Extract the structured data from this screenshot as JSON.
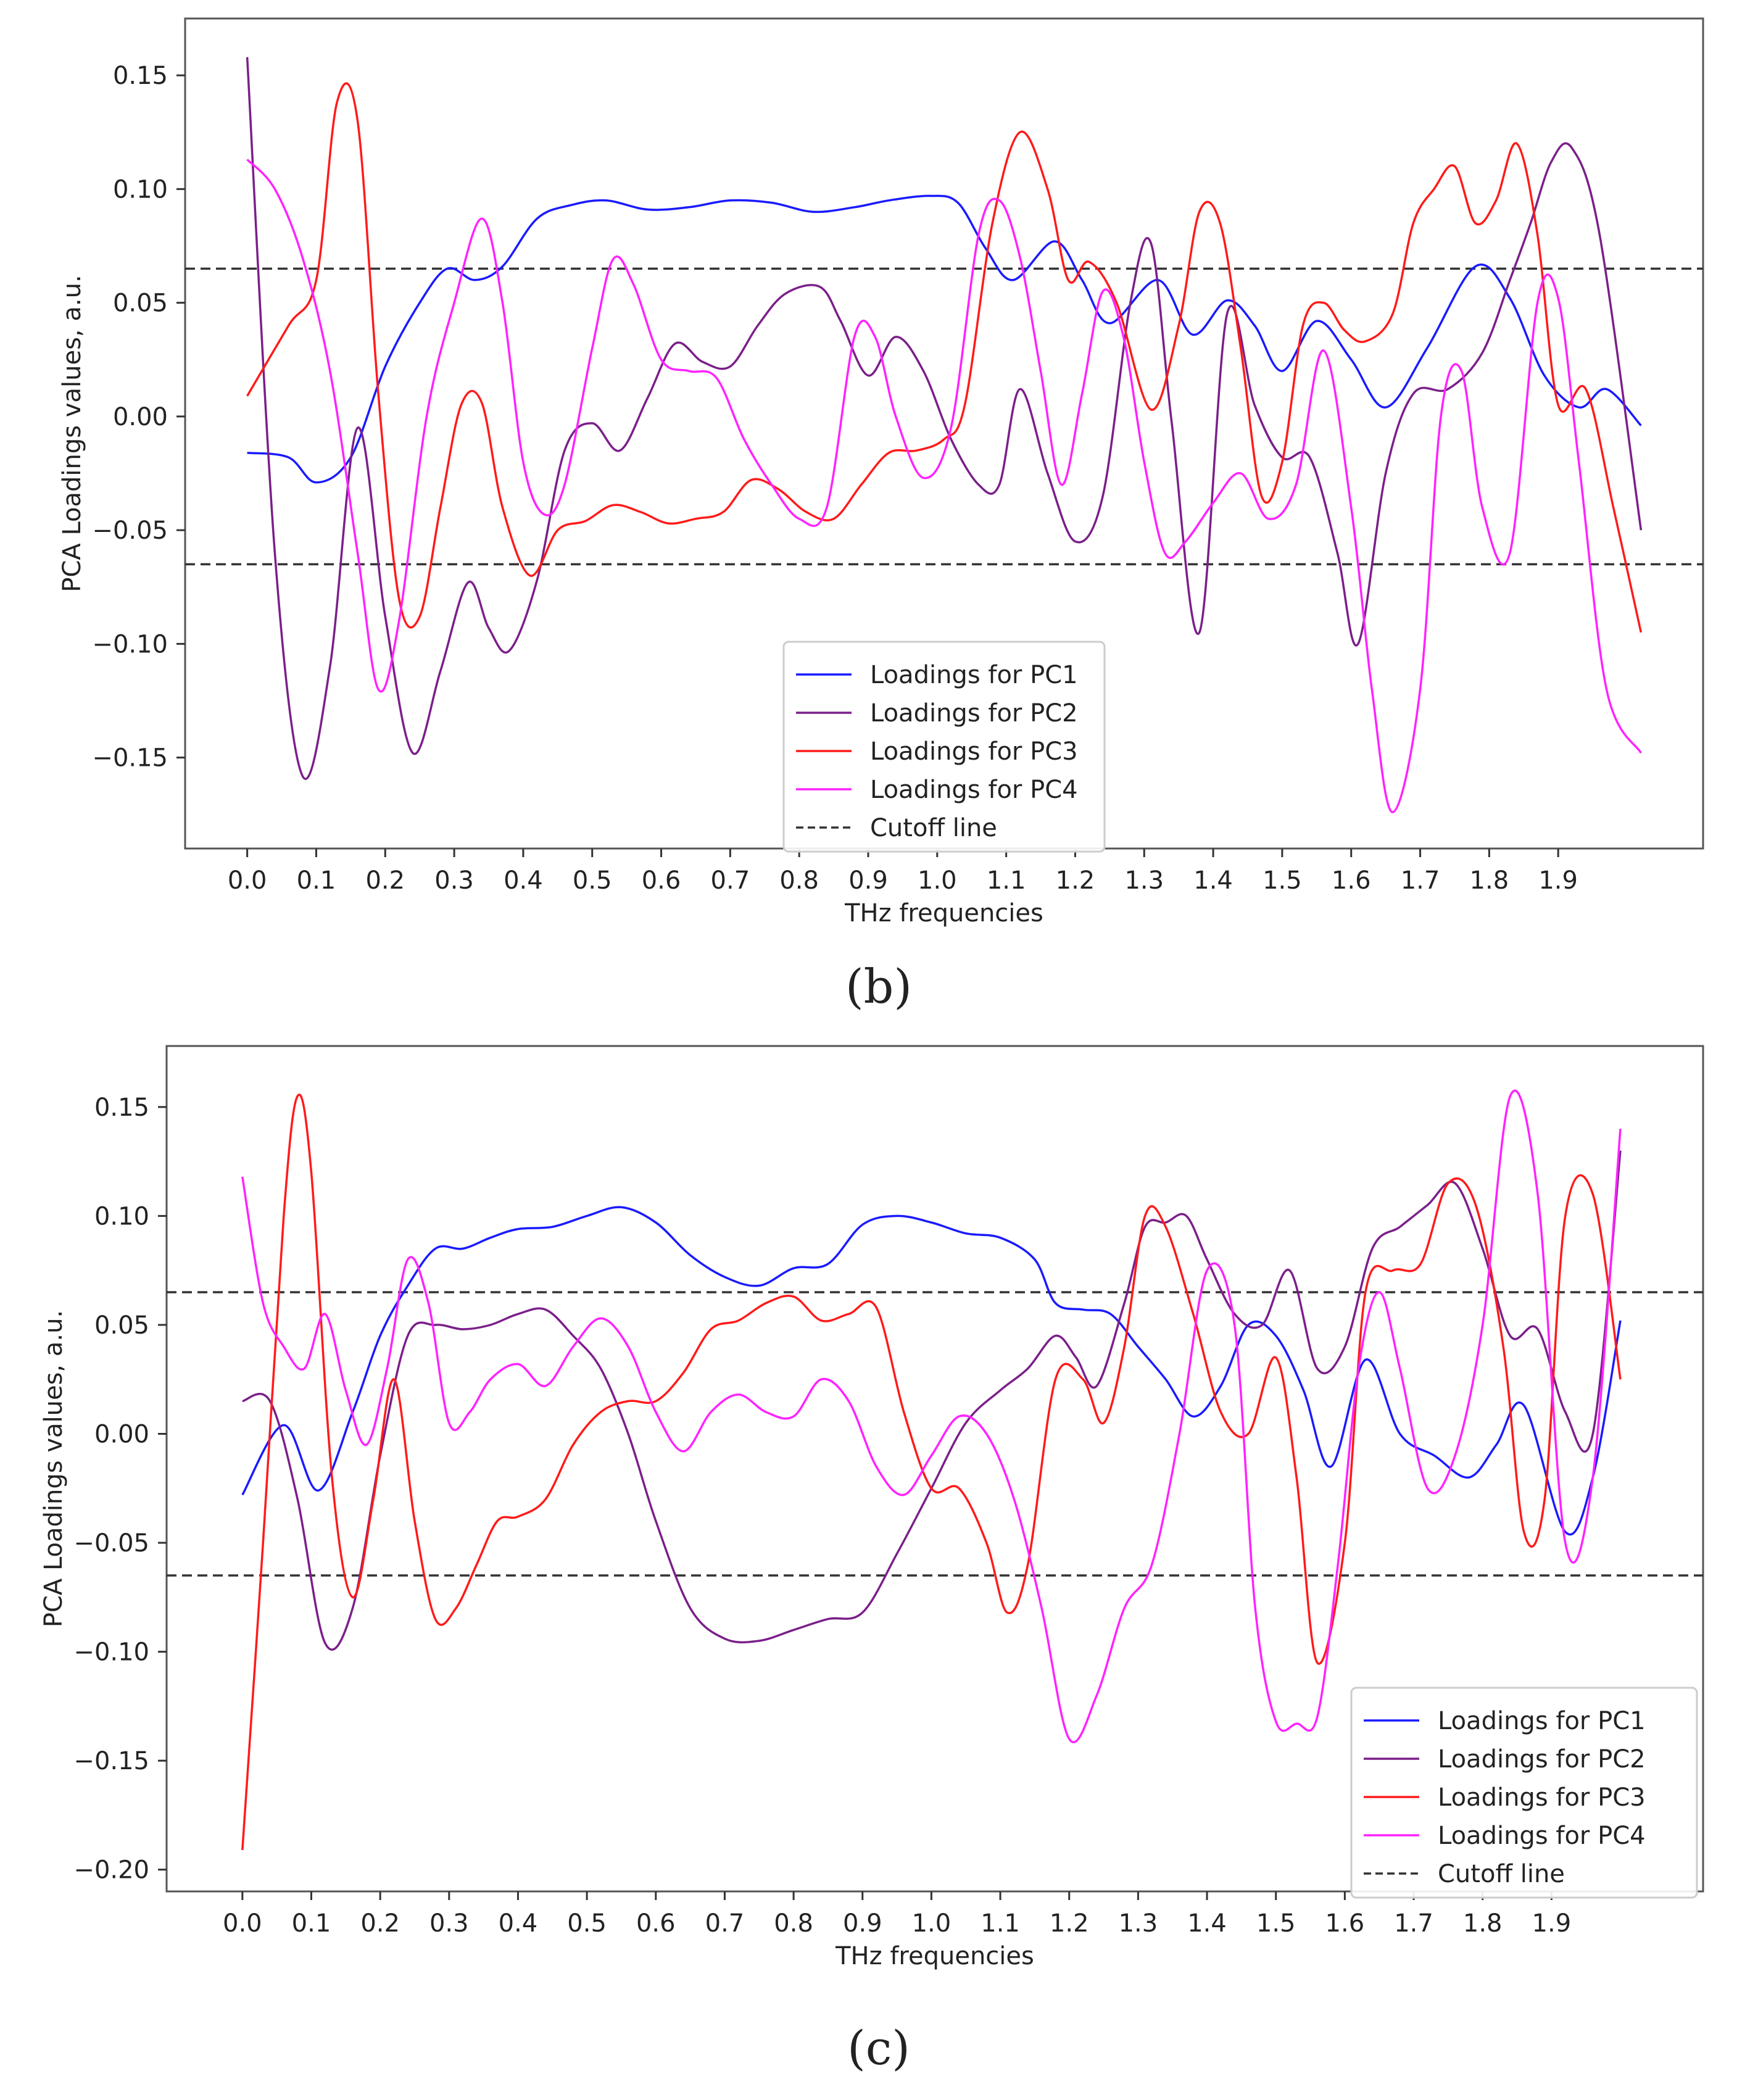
{
  "figure": {
    "panel_labels": [
      "(b)",
      "(c)"
    ]
  },
  "colors": {
    "pc1": "#1a1aff",
    "pc2": "#7b1f8a",
    "pc3": "#ff1a1a",
    "pc4": "#ff22ff",
    "cutoff": "#333333",
    "frame": "#555555"
  },
  "chart_data": [
    {
      "type": "line",
      "panel": "(b)",
      "title": "",
      "xlabel": "THz frequencies",
      "ylabel": "PCA Loadings values, a.u.",
      "xlim": [
        -0.09,
        2.11
      ],
      "ylim": [
        -0.19,
        0.175
      ],
      "x_ticks": [
        0.0,
        0.1,
        0.2,
        0.3,
        0.4,
        0.5,
        0.6,
        0.7,
        0.8,
        0.9,
        1.0,
        1.1,
        1.2,
        1.3,
        1.4,
        1.5,
        1.6,
        1.7,
        1.8,
        1.9
      ],
      "x_tick_labels": [
        "0.0",
        "0.1",
        "0.2",
        "0.3",
        "0.4",
        "0.5",
        "0.6",
        "0.7",
        "0.8",
        "0.9",
        "1.0",
        "1.1",
        "1.2",
        "1.3",
        "1.4",
        "1.5",
        "1.6",
        "1.7",
        "1.8",
        "1.9"
      ],
      "y_ticks": [
        -0.15,
        -0.1,
        -0.05,
        0.0,
        0.05,
        0.1,
        0.15
      ],
      "y_tick_labels": [
        "−0.15",
        "−0.10",
        "−0.05",
        "0.00",
        "0.05",
        "0.10",
        "0.15"
      ],
      "cutoff": [
        0.065,
        -0.065
      ],
      "legend_position": "lower-center",
      "legend": [
        "Loadings for PC1",
        "Loadings for PC2",
        "Loadings for PC3",
        "Loadings for PC4",
        "Cutoff line"
      ],
      "series": [
        {
          "name": "Loadings for PC1",
          "color_key": "pc1",
          "x": [
            0.0,
            0.06,
            0.1,
            0.15,
            0.2,
            0.25,
            0.29,
            0.33,
            0.37,
            0.42,
            0.47,
            0.52,
            0.58,
            0.64,
            0.7,
            0.76,
            0.82,
            0.88,
            0.93,
            0.99,
            1.03,
            1.07,
            1.11,
            1.17,
            1.21,
            1.25,
            1.32,
            1.37,
            1.42,
            1.46,
            1.5,
            1.55,
            1.6,
            1.65,
            1.71,
            1.78,
            1.83,
            1.88,
            1.93,
            1.97,
            2.02
          ],
          "y": [
            -0.016,
            -0.018,
            -0.029,
            -0.018,
            0.022,
            0.05,
            0.065,
            0.06,
            0.066,
            0.087,
            0.093,
            0.095,
            0.091,
            0.092,
            0.095,
            0.094,
            0.09,
            0.092,
            0.095,
            0.097,
            0.094,
            0.074,
            0.06,
            0.077,
            0.06,
            0.041,
            0.06,
            0.036,
            0.051,
            0.04,
            0.02,
            0.042,
            0.025,
            0.004,
            0.03,
            0.066,
            0.052,
            0.018,
            0.004,
            0.012,
            -0.004
          ]
        },
        {
          "name": "Loadings for PC2",
          "color_key": "pc2",
          "x": [
            0.0,
            0.04,
            0.08,
            0.12,
            0.16,
            0.2,
            0.24,
            0.28,
            0.32,
            0.35,
            0.38,
            0.42,
            0.46,
            0.5,
            0.54,
            0.58,
            0.62,
            0.66,
            0.7,
            0.74,
            0.78,
            0.83,
            0.86,
            0.9,
            0.94,
            0.98,
            1.02,
            1.06,
            1.09,
            1.12,
            1.16,
            1.2,
            1.24,
            1.28,
            1.31,
            1.34,
            1.38,
            1.42,
            1.46,
            1.5,
            1.54,
            1.58,
            1.61,
            1.65,
            1.69,
            1.74,
            1.79,
            1.83,
            1.86,
            1.89,
            1.92,
            1.96,
            2.02
          ],
          "y": [
            0.158,
            -0.06,
            -0.158,
            -0.11,
            -0.005,
            -0.088,
            -0.148,
            -0.112,
            -0.073,
            -0.093,
            -0.103,
            -0.072,
            -0.015,
            -0.003,
            -0.015,
            0.008,
            0.032,
            0.024,
            0.022,
            0.04,
            0.054,
            0.057,
            0.042,
            0.018,
            0.035,
            0.02,
            -0.01,
            -0.03,
            -0.03,
            0.012,
            -0.025,
            -0.055,
            -0.035,
            0.05,
            0.076,
            -0.003,
            -0.095,
            0.045,
            0.005,
            -0.018,
            -0.018,
            -0.06,
            -0.1,
            -0.025,
            0.01,
            0.012,
            0.028,
            0.06,
            0.085,
            0.112,
            0.118,
            0.08,
            -0.05
          ]
        },
        {
          "name": "Loadings for PC3",
          "color_key": "pc3",
          "x": [
            0.0,
            0.06,
            0.1,
            0.13,
            0.16,
            0.19,
            0.22,
            0.25,
            0.28,
            0.31,
            0.34,
            0.37,
            0.41,
            0.45,
            0.49,
            0.53,
            0.57,
            0.61,
            0.65,
            0.69,
            0.73,
            0.77,
            0.81,
            0.85,
            0.89,
            0.93,
            0.97,
            1.01,
            1.04,
            1.08,
            1.12,
            1.16,
            1.19,
            1.22,
            1.26,
            1.31,
            1.35,
            1.38,
            1.41,
            1.44,
            1.47,
            1.5,
            1.53,
            1.56,
            1.59,
            1.62,
            1.66,
            1.69,
            1.72,
            1.75,
            1.78,
            1.81,
            1.84,
            1.87,
            1.9,
            1.94,
            1.98,
            2.02
          ],
          "y": [
            0.009,
            0.04,
            0.06,
            0.138,
            0.13,
            0.01,
            -0.08,
            -0.088,
            -0.04,
            0.005,
            0.006,
            -0.04,
            -0.07,
            -0.05,
            -0.046,
            -0.039,
            -0.042,
            -0.047,
            -0.045,
            -0.042,
            -0.028,
            -0.032,
            -0.042,
            -0.045,
            -0.03,
            -0.016,
            -0.015,
            -0.01,
            0.005,
            0.085,
            0.125,
            0.1,
            0.06,
            0.068,
            0.05,
            0.003,
            0.04,
            0.09,
            0.085,
            0.03,
            -0.035,
            -0.02,
            0.04,
            0.05,
            0.038,
            0.033,
            0.045,
            0.085,
            0.1,
            0.11,
            0.085,
            0.095,
            0.12,
            0.08,
            0.005,
            0.012,
            -0.04,
            -0.095
          ]
        },
        {
          "name": "Loadings for PC4",
          "color_key": "pc4",
          "x": [
            0.0,
            0.04,
            0.08,
            0.12,
            0.16,
            0.19,
            0.22,
            0.26,
            0.3,
            0.34,
            0.37,
            0.4,
            0.43,
            0.46,
            0.5,
            0.53,
            0.56,
            0.6,
            0.64,
            0.68,
            0.72,
            0.76,
            0.8,
            0.84,
            0.88,
            0.91,
            0.94,
            0.98,
            1.02,
            1.06,
            1.09,
            1.12,
            1.15,
            1.18,
            1.21,
            1.24,
            1.27,
            1.3,
            1.33,
            1.36,
            1.4,
            1.44,
            1.48,
            1.52,
            1.56,
            1.6,
            1.63,
            1.66,
            1.7,
            1.73,
            1.76,
            1.79,
            1.83,
            1.87,
            1.9,
            1.93,
            1.97,
            2.02
          ],
          "y": [
            0.113,
            0.1,
            0.07,
            0.02,
            -0.06,
            -0.12,
            -0.09,
            0.0,
            0.05,
            0.087,
            0.05,
            -0.02,
            -0.043,
            -0.03,
            0.03,
            0.069,
            0.058,
            0.025,
            0.02,
            0.017,
            -0.01,
            -0.03,
            -0.045,
            -0.04,
            0.035,
            0.035,
            0.0,
            -0.027,
            -0.005,
            0.08,
            0.095,
            0.07,
            0.02,
            -0.03,
            0.01,
            0.055,
            0.035,
            -0.02,
            -0.06,
            -0.055,
            -0.038,
            -0.025,
            -0.045,
            -0.03,
            0.029,
            -0.04,
            -0.12,
            -0.174,
            -0.12,
            0.0,
            0.02,
            -0.04,
            -0.06,
            0.05,
            0.052,
            -0.02,
            -0.12,
            -0.148
          ]
        }
      ]
    },
    {
      "type": "line",
      "panel": "(c)",
      "title": "",
      "xlabel": "THz frequencies",
      "ylabel": "PCA Loadings values, a.u.",
      "xlim": [
        -0.11,
        2.12
      ],
      "ylim": [
        -0.21,
        0.178
      ],
      "x_ticks": [
        0.0,
        0.1,
        0.2,
        0.3,
        0.4,
        0.5,
        0.6,
        0.7,
        0.8,
        0.9,
        1.0,
        1.1,
        1.2,
        1.3,
        1.4,
        1.5,
        1.6,
        1.7,
        1.8,
        1.9
      ],
      "x_tick_labels": [
        "0.0",
        "0.1",
        "0.2",
        "0.3",
        "0.4",
        "0.5",
        "0.6",
        "0.7",
        "0.8",
        "0.9",
        "1.0",
        "1.1",
        "1.2",
        "1.3",
        "1.4",
        "1.5",
        "1.6",
        "1.7",
        "1.8",
        "1.9"
      ],
      "y_ticks": [
        -0.2,
        -0.15,
        -0.1,
        -0.05,
        0.0,
        0.05,
        0.1,
        0.15
      ],
      "y_tick_labels": [
        "−0.20",
        "−0.15",
        "−0.10",
        "−0.05",
        "0.00",
        "0.05",
        "0.10",
        "0.15"
      ],
      "cutoff": [
        0.065,
        -0.065
      ],
      "legend_position": "lower-right",
      "legend": [
        "Loadings for PC1",
        "Loadings for PC2",
        "Loadings for PC3",
        "Loadings for PC4",
        "Cutoff line"
      ],
      "series": [
        {
          "name": "Loadings for PC1",
          "color_key": "pc1",
          "x": [
            0.0,
            0.06,
            0.11,
            0.16,
            0.2,
            0.24,
            0.28,
            0.32,
            0.36,
            0.4,
            0.45,
            0.5,
            0.55,
            0.6,
            0.65,
            0.7,
            0.75,
            0.8,
            0.85,
            0.9,
            0.95,
            1.0,
            1.05,
            1.1,
            1.15,
            1.18,
            1.22,
            1.26,
            1.3,
            1.34,
            1.38,
            1.42,
            1.46,
            1.5,
            1.54,
            1.58,
            1.63,
            1.68,
            1.73,
            1.78,
            1.82,
            1.86,
            1.92,
            1.96,
            2.0
          ],
          "y": [
            -0.028,
            0.004,
            -0.026,
            0.01,
            0.045,
            0.068,
            0.085,
            0.085,
            0.09,
            0.094,
            0.095,
            0.1,
            0.104,
            0.097,
            0.082,
            0.072,
            0.068,
            0.076,
            0.078,
            0.096,
            0.1,
            0.097,
            0.092,
            0.09,
            0.08,
            0.06,
            0.057,
            0.055,
            0.04,
            0.025,
            0.008,
            0.022,
            0.05,
            0.045,
            0.02,
            -0.015,
            0.034,
            0.0,
            -0.01,
            -0.02,
            -0.005,
            0.013,
            -0.045,
            -0.02,
            0.052
          ]
        },
        {
          "name": "Loadings for PC2",
          "color_key": "pc2",
          "x": [
            0.0,
            0.04,
            0.08,
            0.12,
            0.16,
            0.2,
            0.24,
            0.28,
            0.32,
            0.36,
            0.4,
            0.44,
            0.48,
            0.52,
            0.56,
            0.6,
            0.65,
            0.7,
            0.75,
            0.8,
            0.85,
            0.9,
            0.95,
            1.0,
            1.05,
            1.1,
            1.14,
            1.18,
            1.21,
            1.24,
            1.28,
            1.31,
            1.34,
            1.37,
            1.4,
            1.44,
            1.48,
            1.52,
            1.56,
            1.6,
            1.64,
            1.68,
            1.72,
            1.76,
            1.8,
            1.84,
            1.88,
            1.92,
            1.96,
            2.0
          ],
          "y": [
            0.015,
            0.015,
            -0.03,
            -0.096,
            -0.08,
            -0.01,
            0.045,
            0.05,
            0.048,
            0.05,
            0.055,
            0.057,
            0.045,
            0.03,
            0.0,
            -0.04,
            -0.08,
            -0.094,
            -0.095,
            -0.09,
            -0.085,
            -0.082,
            -0.055,
            -0.025,
            0.005,
            0.02,
            0.03,
            0.045,
            0.035,
            0.022,
            0.06,
            0.095,
            0.097,
            0.1,
            0.08,
            0.055,
            0.05,
            0.075,
            0.03,
            0.04,
            0.085,
            0.095,
            0.105,
            0.115,
            0.085,
            0.045,
            0.048,
            0.01,
            0.0,
            0.13
          ]
        },
        {
          "name": "Loadings for PC3",
          "color_key": "pc3",
          "x": [
            0.0,
            0.03,
            0.06,
            0.08,
            0.1,
            0.13,
            0.16,
            0.19,
            0.22,
            0.25,
            0.28,
            0.31,
            0.34,
            0.37,
            0.4,
            0.44,
            0.48,
            0.52,
            0.56,
            0.6,
            0.64,
            0.68,
            0.72,
            0.76,
            0.8,
            0.84,
            0.88,
            0.92,
            0.96,
            1.0,
            1.04,
            1.08,
            1.11,
            1.14,
            1.18,
            1.22,
            1.25,
            1.28,
            1.31,
            1.34,
            1.38,
            1.42,
            1.46,
            1.5,
            1.53,
            1.56,
            1.6,
            1.63,
            1.67,
            1.71,
            1.75,
            1.79,
            1.83,
            1.86,
            1.89,
            1.92,
            1.96,
            2.0
          ],
          "y": [
            -0.191,
            -0.05,
            0.1,
            0.155,
            0.12,
            -0.02,
            -0.075,
            -0.03,
            0.025,
            -0.04,
            -0.085,
            -0.08,
            -0.06,
            -0.04,
            -0.038,
            -0.03,
            -0.005,
            0.01,
            0.015,
            0.015,
            0.028,
            0.048,
            0.052,
            0.06,
            0.063,
            0.052,
            0.055,
            0.058,
            0.01,
            -0.025,
            -0.025,
            -0.05,
            -0.082,
            -0.06,
            0.025,
            0.025,
            0.005,
            0.04,
            0.1,
            0.095,
            0.055,
            0.01,
            0.0,
            0.035,
            -0.02,
            -0.105,
            -0.05,
            0.065,
            0.075,
            0.078,
            0.115,
            0.105,
            0.04,
            -0.045,
            -0.03,
            0.1,
            0.11,
            0.025
          ]
        },
        {
          "name": "Loadings for PC4",
          "color_key": "pc4",
          "x": [
            0.0,
            0.03,
            0.06,
            0.09,
            0.12,
            0.15,
            0.18,
            0.21,
            0.24,
            0.27,
            0.3,
            0.33,
            0.36,
            0.4,
            0.44,
            0.48,
            0.52,
            0.56,
            0.6,
            0.64,
            0.68,
            0.72,
            0.76,
            0.8,
            0.84,
            0.88,
            0.92,
            0.96,
            1.0,
            1.04,
            1.08,
            1.12,
            1.16,
            1.2,
            1.24,
            1.28,
            1.32,
            1.36,
            1.4,
            1.44,
            1.47,
            1.5,
            1.53,
            1.56,
            1.59,
            1.62,
            1.65,
            1.68,
            1.72,
            1.76,
            1.8,
            1.84,
            1.88,
            1.92,
            1.96,
            2.0
          ],
          "y": [
            0.118,
            0.06,
            0.04,
            0.03,
            0.055,
            0.02,
            -0.005,
            0.03,
            0.08,
            0.06,
            0.005,
            0.01,
            0.025,
            0.032,
            0.022,
            0.04,
            0.053,
            0.04,
            0.01,
            -0.008,
            0.01,
            0.018,
            0.01,
            0.008,
            0.025,
            0.015,
            -0.015,
            -0.028,
            -0.01,
            0.008,
            0.0,
            -0.03,
            -0.08,
            -0.14,
            -0.12,
            -0.08,
            -0.06,
            0.0,
            0.075,
            0.05,
            -0.08,
            -0.132,
            -0.133,
            -0.13,
            -0.06,
            0.03,
            0.065,
            0.03,
            -0.025,
            -0.01,
            0.05,
            0.155,
            0.11,
            -0.05,
            -0.02,
            0.14
          ]
        }
      ]
    }
  ]
}
